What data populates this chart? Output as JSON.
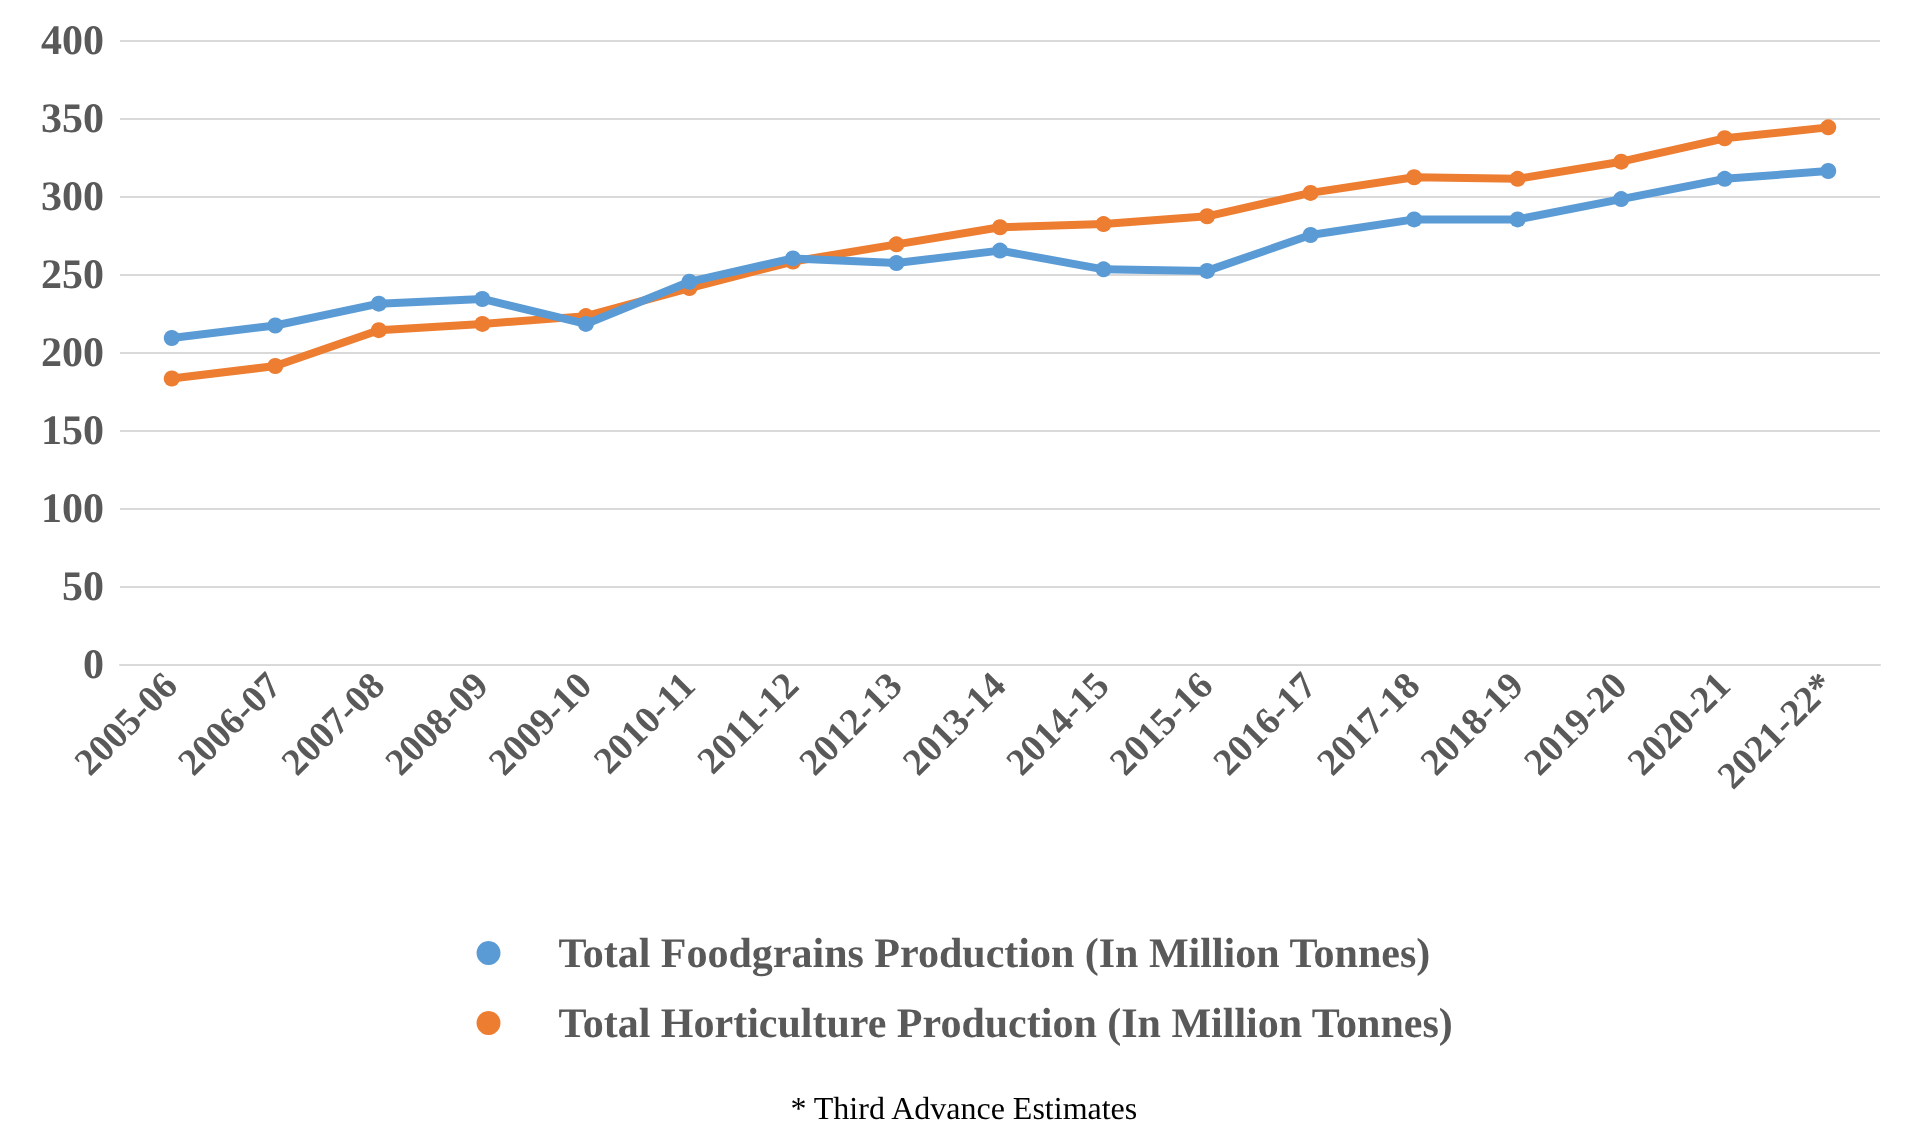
{
  "chart_data": {
    "type": "line",
    "categories": [
      "2005-06",
      "2006-07",
      "2007-08",
      "2008-09",
      "2009-10",
      "2010-11",
      "2011-12",
      "2012-13",
      "2013-14",
      "2014-15",
      "2015-16",
      "2016-17",
      "2017-18",
      "2018-19",
      "2019-20",
      "2020-21",
      "2021-22*"
    ],
    "series": [
      {
        "name": "Total Foodgrains Production (In Million Tonnes)",
        "color": "#5b9bd5",
        "values": [
          209,
          217,
          231,
          234,
          218,
          245,
          260,
          257,
          265,
          253,
          252,
          275,
          285,
          285,
          298,
          311,
          316
        ]
      },
      {
        "name": "Total Horticulture Production (In Million Tonnes)",
        "color": "#ed7d31",
        "values": [
          183,
          191,
          214,
          218,
          223,
          241,
          258,
          269,
          280,
          282,
          287,
          302,
          312,
          311,
          322,
          337,
          344
        ]
      }
    ],
    "ylim": [
      0,
      400
    ],
    "yticks": [
      0,
      50,
      100,
      150,
      200,
      250,
      300,
      350,
      400
    ],
    "grid": "y",
    "legend": "bottom",
    "marker": "circle",
    "line_style": "solid",
    "annotations": [
      "* Third Advance Estimates"
    ]
  }
}
